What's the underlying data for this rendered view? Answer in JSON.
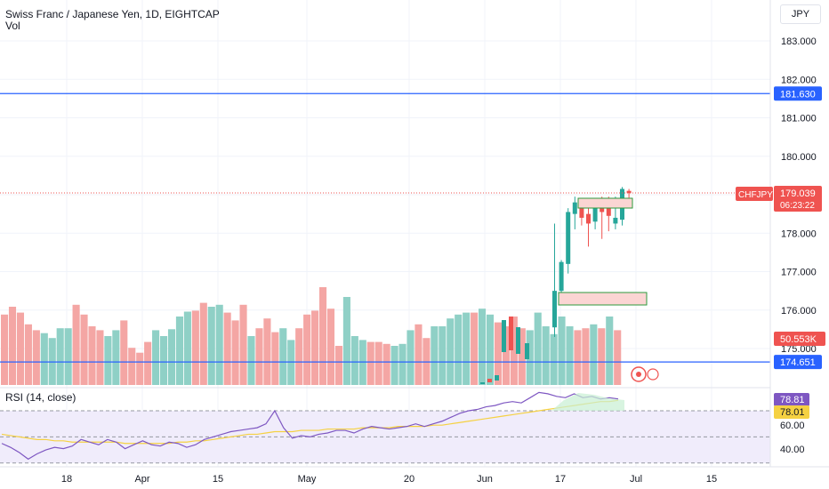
{
  "header": {
    "title": "Swiss Franc / Japanese Yen, 1D, EIGHTCAP",
    "volume_label": "Vol",
    "currency": "JPY"
  },
  "price_axis": {
    "ticks": [
      "183.000",
      "182.000",
      "181.000",
      "180.000",
      "179.000",
      "178.000",
      "177.000",
      "176.000",
      "175.000"
    ],
    "hline_labels": [
      "181.630",
      "174.651"
    ],
    "symbol_tag": "CHFJPY",
    "last_price": "179.039",
    "countdown": "06:23:22",
    "volume_tag": "50.553K"
  },
  "rsi": {
    "label": "RSI (14, close)",
    "value_rsi": "78.81",
    "value_ma": "78.01",
    "ticks": [
      "60.00",
      "40.00"
    ]
  },
  "time_axis": {
    "labels": [
      "18",
      "Apr",
      "15",
      "May",
      "20",
      "Jun",
      "17",
      "Jul",
      "15"
    ]
  },
  "colors": {
    "up": "#26a69a",
    "down": "#ef5350",
    "vol_up": "#8fd0c6",
    "vol_down": "#f4a6a4",
    "hline": "#2962ff",
    "rsi": "#7e57c2",
    "rsi_ma": "#f5d142"
  },
  "chart_data": {
    "type": "candlestick",
    "price_range": [
      174.2,
      183.6
    ],
    "hlines": [
      181.63,
      174.651
    ],
    "candles": [
      {
        "o": 175.55,
        "h": 178.25,
        "l": 175.3,
        "c": 176.5
      },
      {
        "o": 176.5,
        "h": 177.3,
        "l": 176.25,
        "c": 177.25
      },
      {
        "o": 177.2,
        "h": 178.65,
        "l": 176.95,
        "c": 178.55
      },
      {
        "o": 178.5,
        "h": 178.95,
        "l": 178.1,
        "c": 178.8
      },
      {
        "o": 178.7,
        "h": 178.9,
        "l": 178.2,
        "c": 178.4
      },
      {
        "o": 178.5,
        "h": 178.9,
        "l": 177.65,
        "c": 178.25
      },
      {
        "o": 178.3,
        "h": 178.8,
        "l": 178.1,
        "c": 178.65
      },
      {
        "o": 178.7,
        "h": 178.95,
        "l": 177.85,
        "c": 178.55
      },
      {
        "o": 178.65,
        "h": 178.95,
        "l": 178.05,
        "c": 178.45
      },
      {
        "o": 178.25,
        "h": 178.95,
        "l": 178.1,
        "c": 178.4
      },
      {
        "o": 178.35,
        "h": 179.2,
        "l": 178.2,
        "c": 179.15
      },
      {
        "o": 179.1,
        "h": 179.15,
        "l": 178.9,
        "c": 179.04
      }
    ],
    "volume": [
      {
        "v": 0.72,
        "up": false
      },
      {
        "v": 0.8,
        "up": false
      },
      {
        "v": 0.74,
        "up": false
      },
      {
        "v": 0.62,
        "up": false
      },
      {
        "v": 0.56,
        "up": false
      },
      {
        "v": 0.53,
        "up": true
      },
      {
        "v": 0.48,
        "up": true
      },
      {
        "v": 0.58,
        "up": true
      },
      {
        "v": 0.58,
        "up": true
      },
      {
        "v": 0.82,
        "up": false
      },
      {
        "v": 0.72,
        "up": false
      },
      {
        "v": 0.6,
        "up": false
      },
      {
        "v": 0.56,
        "up": false
      },
      {
        "v": 0.5,
        "up": true
      },
      {
        "v": 0.56,
        "up": true
      },
      {
        "v": 0.66,
        "up": false
      },
      {
        "v": 0.38,
        "up": false
      },
      {
        "v": 0.33,
        "up": false
      },
      {
        "v": 0.44,
        "up": false
      },
      {
        "v": 0.56,
        "up": true
      },
      {
        "v": 0.5,
        "up": true
      },
      {
        "v": 0.57,
        "up": true
      },
      {
        "v": 0.7,
        "up": true
      },
      {
        "v": 0.75,
        "up": true
      },
      {
        "v": 0.76,
        "up": false
      },
      {
        "v": 0.84,
        "up": false
      },
      {
        "v": 0.8,
        "up": true
      },
      {
        "v": 0.82,
        "up": true
      },
      {
        "v": 0.74,
        "up": false
      },
      {
        "v": 0.66,
        "up": false
      },
      {
        "v": 0.82,
        "up": false
      },
      {
        "v": 0.5,
        "up": true
      },
      {
        "v": 0.58,
        "up": false
      },
      {
        "v": 0.68,
        "up": false
      },
      {
        "v": 0.54,
        "up": false
      },
      {
        "v": 0.58,
        "up": true
      },
      {
        "v": 0.46,
        "up": true
      },
      {
        "v": 0.58,
        "up": false
      },
      {
        "v": 0.72,
        "up": false
      },
      {
        "v": 0.76,
        "up": false
      },
      {
        "v": 1.0,
        "up": false
      },
      {
        "v": 0.78,
        "up": false
      },
      {
        "v": 0.4,
        "up": false
      },
      {
        "v": 0.9,
        "up": true
      },
      {
        "v": 0.5,
        "up": true
      },
      {
        "v": 0.46,
        "up": true
      },
      {
        "v": 0.44,
        "up": false
      },
      {
        "v": 0.44,
        "up": false
      },
      {
        "v": 0.42,
        "up": false
      },
      {
        "v": 0.4,
        "up": true
      },
      {
        "v": 0.42,
        "up": true
      },
      {
        "v": 0.56,
        "up": true
      },
      {
        "v": 0.62,
        "up": false
      },
      {
        "v": 0.48,
        "up": false
      },
      {
        "v": 0.6,
        "up": true
      },
      {
        "v": 0.6,
        "up": true
      },
      {
        "v": 0.68,
        "up": true
      },
      {
        "v": 0.72,
        "up": true
      },
      {
        "v": 0.74,
        "up": true
      },
      {
        "v": 0.74,
        "up": false
      },
      {
        "v": 0.78,
        "up": true
      },
      {
        "v": 0.72,
        "up": true
      },
      {
        "v": 0.64,
        "up": false
      },
      {
        "v": 0.6,
        "up": false
      },
      {
        "v": 0.7,
        "up": false
      },
      {
        "v": 0.58,
        "up": false
      },
      {
        "v": 0.56,
        "up": true
      },
      {
        "v": 0.74,
        "up": true
      },
      {
        "v": 0.6,
        "up": true
      },
      {
        "v": 0.52,
        "up": true
      },
      {
        "v": 0.7,
        "up": true
      },
      {
        "v": 0.6,
        "up": true
      },
      {
        "v": 0.56,
        "up": false
      },
      {
        "v": 0.58,
        "up": false
      },
      {
        "v": 0.62,
        "up": true
      },
      {
        "v": 0.58,
        "up": false
      },
      {
        "v": 0.7,
        "up": true
      },
      {
        "v": 0.56,
        "up": false
      }
    ],
    "rsi": [
      45,
      42,
      38,
      33,
      37,
      40,
      42,
      41,
      43,
      48,
      46,
      44,
      48,
      46,
      41,
      44,
      47,
      44,
      43,
      46,
      45,
      42,
      44,
      48,
      50,
      52,
      54,
      55,
      56,
      57,
      60,
      70,
      57,
      49,
      51,
      50,
      52,
      53,
      55,
      55,
      53,
      56,
      58,
      57,
      56,
      57,
      58,
      60,
      58,
      60,
      62,
      65,
      68,
      70,
      71,
      73,
      74,
      76,
      77,
      76,
      80,
      84,
      83,
      81,
      80,
      83,
      80,
      81,
      79,
      80,
      79
    ],
    "rsi_ma": [
      52,
      51,
      50,
      49,
      48,
      48,
      47,
      47,
      46,
      46,
      46,
      46,
      46,
      46,
      45,
      45,
      45,
      45,
      45,
      45,
      46,
      46,
      47,
      47,
      48,
      49,
      50,
      51,
      52,
      52,
      53,
      54,
      54,
      54,
      55,
      55,
      55,
      56,
      56,
      56,
      56,
      57,
      57,
      57,
      57,
      58,
      58,
      58,
      58,
      59,
      59,
      60,
      61,
      62,
      63,
      64,
      65,
      66,
      67,
      68,
      69,
      70,
      71,
      72,
      73,
      74,
      75,
      76,
      77,
      77,
      78
    ]
  }
}
